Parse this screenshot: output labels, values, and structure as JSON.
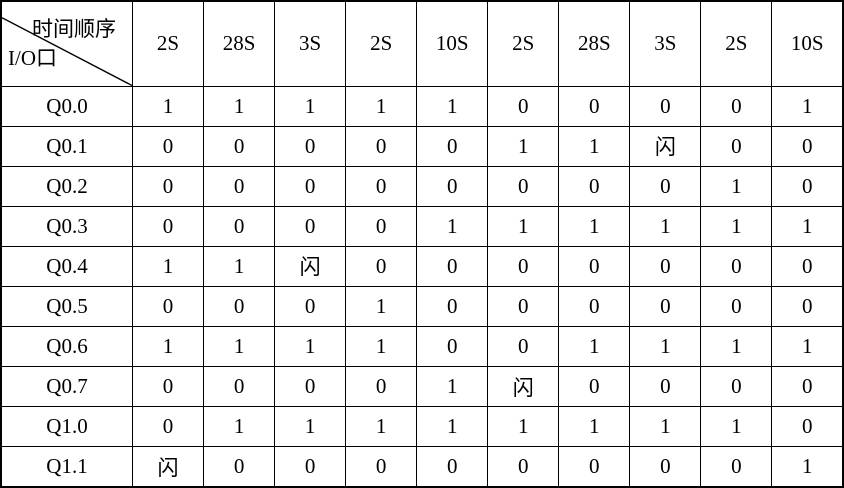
{
  "table": {
    "corner": {
      "top_label": "时间顺序",
      "bottom_label": "I/O口"
    },
    "columns": [
      "2S",
      "28S",
      "3S",
      "2S",
      "10S",
      "2S",
      "28S",
      "3S",
      "2S",
      "10S"
    ],
    "rows": [
      {
        "label": "Q0.0",
        "cells": [
          "1",
          "1",
          "1",
          "1",
          "1",
          "0",
          "0",
          "0",
          "0",
          "1"
        ]
      },
      {
        "label": "Q0.1",
        "cells": [
          "0",
          "0",
          "0",
          "0",
          "0",
          "1",
          "1",
          "闪",
          "0",
          "0"
        ]
      },
      {
        "label": "Q0.2",
        "cells": [
          "0",
          "0",
          "0",
          "0",
          "0",
          "0",
          "0",
          "0",
          "1",
          "0"
        ]
      },
      {
        "label": "Q0.3",
        "cells": [
          "0",
          "0",
          "0",
          "0",
          "1",
          "1",
          "1",
          "1",
          "1",
          "1"
        ]
      },
      {
        "label": "Q0.4",
        "cells": [
          "1",
          "1",
          "闪",
          "0",
          "0",
          "0",
          "0",
          "0",
          "0",
          "0"
        ]
      },
      {
        "label": "Q0.5",
        "cells": [
          "0",
          "0",
          "0",
          "1",
          "0",
          "0",
          "0",
          "0",
          "0",
          "0"
        ]
      },
      {
        "label": "Q0.6",
        "cells": [
          "1",
          "1",
          "1",
          "1",
          "0",
          "0",
          "1",
          "1",
          "1",
          "1"
        ]
      },
      {
        "label": "Q0.7",
        "cells": [
          "0",
          "0",
          "0",
          "0",
          "1",
          "闪",
          "0",
          "0",
          "0",
          "0"
        ]
      },
      {
        "label": "Q1.0",
        "cells": [
          "0",
          "1",
          "1",
          "1",
          "1",
          "1",
          "1",
          "1",
          "1",
          "0"
        ]
      },
      {
        "label": "Q1.1",
        "cells": [
          "闪",
          "0",
          "0",
          "0",
          "0",
          "0",
          "0",
          "0",
          "0",
          "1"
        ]
      }
    ]
  },
  "colors": {
    "border": "#000000",
    "text": "#000000",
    "background": "#ffffff"
  }
}
